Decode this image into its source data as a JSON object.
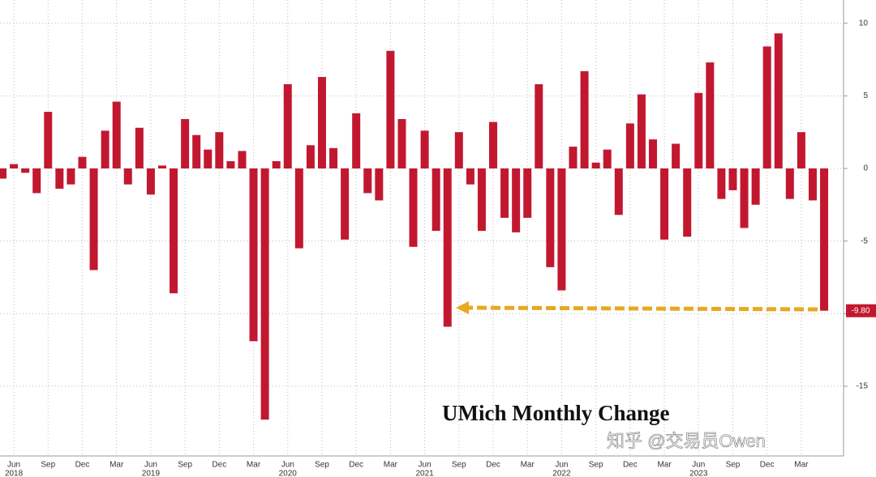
{
  "chart_data": {
    "type": "bar",
    "title": "UMich Monthly Change",
    "watermark": "知乎 @交易员Owen",
    "categories": [
      null,
      "Jun",
      null,
      null,
      "Sep",
      null,
      null,
      "Dec",
      null,
      null,
      "Mar",
      null,
      null,
      "Jun",
      null,
      null,
      "Sep",
      null,
      null,
      "Dec",
      null,
      null,
      "Mar",
      null,
      null,
      "Jun",
      null,
      null,
      "Sep",
      null,
      null,
      "Dec",
      null,
      null,
      "Mar",
      null,
      null,
      "Jun",
      null,
      null,
      "Sep",
      null,
      null,
      "Dec",
      null,
      null,
      "Mar",
      null,
      null,
      "Jun",
      null,
      null,
      "Sep",
      null,
      null,
      "Dec",
      null,
      null,
      "Mar",
      null,
      null,
      "Jun",
      null,
      null,
      "Sep",
      null,
      null,
      "Dec",
      null,
      null,
      "Mar",
      null,
      null
    ],
    "years": [
      null,
      "2018",
      null,
      null,
      null,
      null,
      null,
      null,
      null,
      null,
      null,
      null,
      null,
      "2019",
      null,
      null,
      null,
      null,
      null,
      null,
      null,
      null,
      null,
      null,
      null,
      "2020",
      null,
      null,
      null,
      null,
      null,
      null,
      null,
      null,
      null,
      null,
      null,
      "2021",
      null,
      null,
      null,
      null,
      null,
      null,
      null,
      null,
      null,
      null,
      null,
      "2022",
      null,
      null,
      null,
      null,
      null,
      null,
      null,
      null,
      null,
      null,
      null,
      "2023",
      null,
      null,
      null,
      null,
      null,
      null,
      null,
      null,
      null,
      null,
      null
    ],
    "values": [
      -0.7,
      0.3,
      -0.3,
      -1.7,
      3.9,
      -1.4,
      -1.1,
      0.8,
      -7.0,
      2.6,
      4.6,
      -1.1,
      2.8,
      -1.8,
      0.2,
      -8.6,
      3.4,
      2.3,
      1.3,
      2.5,
      0.5,
      1.2,
      -11.9,
      -17.3,
      0.5,
      5.8,
      -5.5,
      1.6,
      6.3,
      1.4,
      -4.9,
      3.8,
      -1.7,
      -2.2,
      8.1,
      3.4,
      -5.4,
      2.6,
      -4.3,
      -10.9,
      2.5,
      -1.1,
      -4.3,
      3.2,
      -3.4,
      -4.4,
      -3.4,
      5.8,
      -6.8,
      -8.4,
      1.5,
      6.7,
      0.4,
      1.3,
      -3.2,
      3.1,
      5.1,
      2.0,
      -4.9,
      1.7,
      -4.7,
      5.2,
      7.3,
      -2.1,
      -1.5,
      -4.1,
      -2.5,
      8.4,
      9.3,
      -2.1,
      2.5,
      -2.2,
      -9.8
    ],
    "value_labels": [
      null,
      null,
      null,
      null,
      null,
      null,
      null,
      null,
      null,
      null,
      null,
      null,
      null,
      null,
      null,
      null,
      null,
      null,
      null,
      null,
      null,
      null,
      null,
      null,
      null,
      null,
      null,
      null,
      null,
      null,
      null,
      null,
      null,
      null,
      null,
      null,
      null,
      null,
      null,
      null,
      null,
      null,
      null,
      null,
      null,
      null,
      null,
      null,
      null,
      null,
      null,
      null,
      null,
      null,
      null,
      null,
      null,
      null,
      null,
      null,
      null,
      null,
      null,
      null,
      null,
      null,
      null,
      null,
      null,
      null,
      null,
      null,
      "-9.80"
    ],
    "color": "#c2182f",
    "ylim": [
      -19.8,
      11.6
    ],
    "yticks": [
      -15,
      -10,
      -5,
      0,
      5,
      10
    ],
    "grid": true
  }
}
